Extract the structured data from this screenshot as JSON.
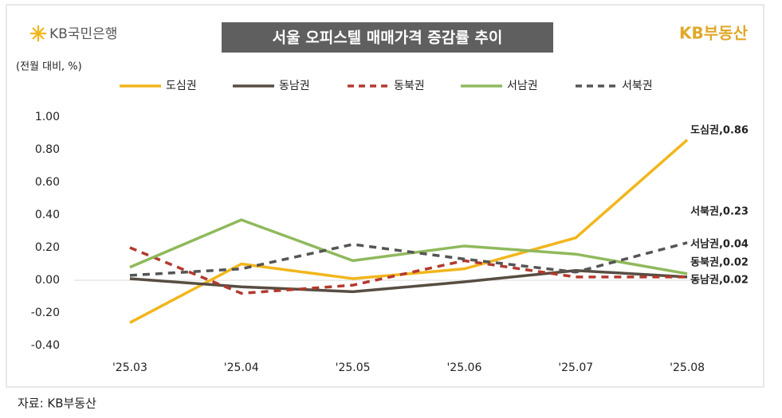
{
  "header": {
    "bank": "KB국민은행",
    "brand": "KB부동산"
  },
  "source": "자료: KB부동산",
  "chart_data": {
    "type": "line",
    "title": "서울 오피스텔 매매가격 증감률 추이",
    "y_label": "(전월 대비, %)",
    "categories": [
      "'25.03",
      "'25.04",
      "'25.05",
      "'25.06",
      "'25.07",
      "'25.08"
    ],
    "series": [
      {
        "name": "도심권",
        "color": "#f2b61c",
        "dash": false,
        "values": [
          -0.26,
          0.1,
          0.01,
          0.07,
          0.26,
          0.86
        ],
        "value_labels": [
          null,
          null,
          null,
          null,
          null,
          "도심권,0.86"
        ]
      },
      {
        "name": "동남권",
        "color": "#574d42",
        "dash": false,
        "values": [
          0.01,
          -0.04,
          -0.07,
          -0.01,
          0.06,
          0.02
        ],
        "value_labels": [
          null,
          null,
          null,
          null,
          null,
          "동남권,0.02"
        ]
      },
      {
        "name": "동북권",
        "color": "#b23a2e",
        "dash": true,
        "values": [
          0.2,
          -0.08,
          -0.03,
          0.12,
          0.02,
          0.02
        ],
        "value_labels": [
          null,
          null,
          null,
          null,
          null,
          "동북권,0.02"
        ]
      },
      {
        "name": "서남권",
        "color": "#8fb95c",
        "dash": false,
        "values": [
          0.08,
          0.37,
          0.12,
          0.21,
          0.16,
          0.04
        ],
        "value_labels": [
          null,
          null,
          null,
          null,
          null,
          "서남권,0.04"
        ]
      },
      {
        "name": "서북권",
        "color": "#555555",
        "dash": true,
        "values": [
          0.03,
          0.07,
          0.22,
          0.13,
          0.05,
          0.23
        ],
        "value_labels": [
          null,
          null,
          null,
          null,
          null,
          "서북권,0.23"
        ]
      }
    ],
    "ylim": [
      -0.4,
      1.0
    ],
    "yticks": [
      {
        "value": 1.0,
        "label": "1.00"
      },
      {
        "value": 0.8,
        "label": "0.80"
      },
      {
        "value": 0.6,
        "label": "0.60"
      },
      {
        "value": 0.4,
        "label": "0.40"
      },
      {
        "value": 0.2,
        "label": "0.20"
      },
      {
        "value": 0.0,
        "label": "0.00"
      },
      {
        "value": -0.2,
        "label": "-0.20"
      },
      {
        "value": -0.4,
        "label": "-0.40"
      }
    ],
    "grid": false
  }
}
